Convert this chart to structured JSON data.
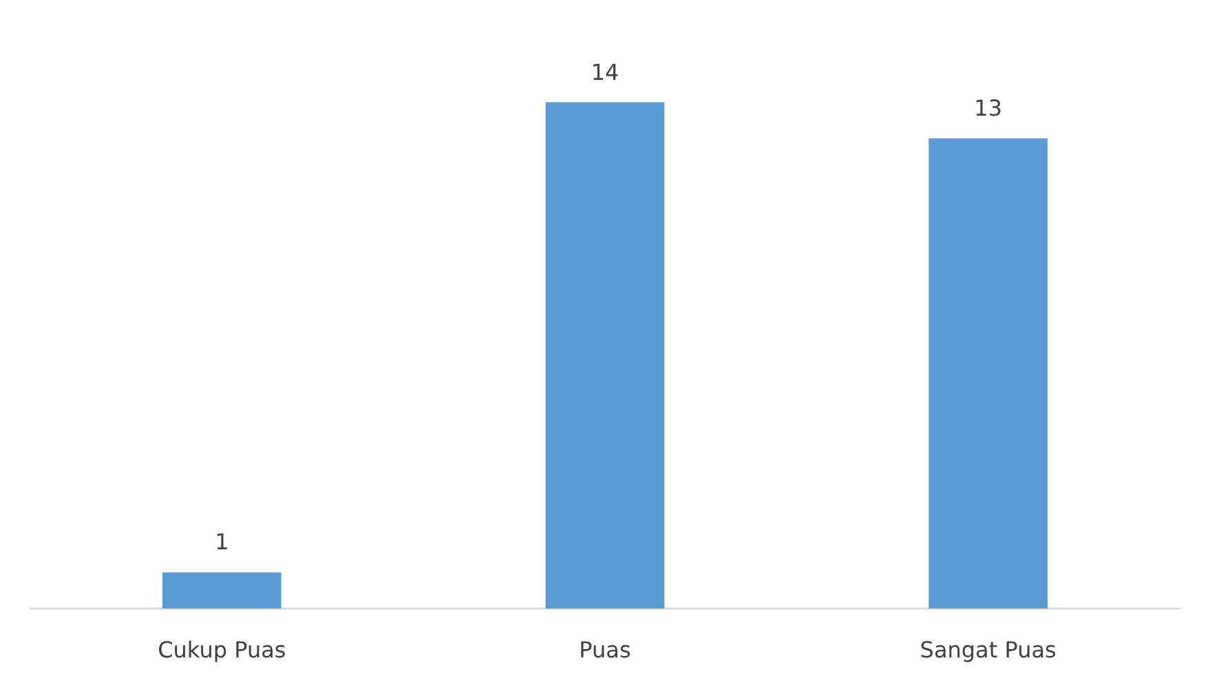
{
  "chart_data": {
    "type": "bar",
    "categories": [
      "Cukup Puas",
      "Puas",
      "Sangat Puas"
    ],
    "values": [
      1,
      14,
      13
    ],
    "color": "#5b9bd5",
    "data_labels": true
  }
}
